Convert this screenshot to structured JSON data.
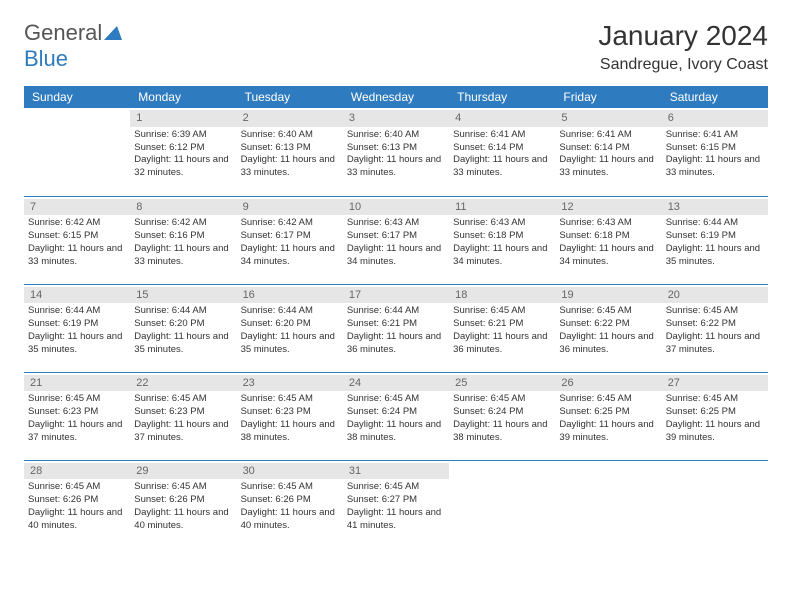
{
  "logo": {
    "general": "General",
    "blue": "Blue"
  },
  "title": "January 2024",
  "location": "Sandregue, Ivory Coast",
  "colors": {
    "header_bg": "#2f7bbf",
    "header_text": "#ffffff",
    "daynum_bg": "#e6e6e6",
    "daynum_text": "#666666",
    "border": "#2f7bbf",
    "text": "#333333",
    "background": "#ffffff"
  },
  "day_names": [
    "Sunday",
    "Monday",
    "Tuesday",
    "Wednesday",
    "Thursday",
    "Friday",
    "Saturday"
  ],
  "weeks": [
    [
      {
        "n": "",
        "lines": []
      },
      {
        "n": "1",
        "lines": [
          "Sunrise: 6:39 AM",
          "Sunset: 6:12 PM",
          "Daylight: 11 hours and 32 minutes."
        ]
      },
      {
        "n": "2",
        "lines": [
          "Sunrise: 6:40 AM",
          "Sunset: 6:13 PM",
          "Daylight: 11 hours and 33 minutes."
        ]
      },
      {
        "n": "3",
        "lines": [
          "Sunrise: 6:40 AM",
          "Sunset: 6:13 PM",
          "Daylight: 11 hours and 33 minutes."
        ]
      },
      {
        "n": "4",
        "lines": [
          "Sunrise: 6:41 AM",
          "Sunset: 6:14 PM",
          "Daylight: 11 hours and 33 minutes."
        ]
      },
      {
        "n": "5",
        "lines": [
          "Sunrise: 6:41 AM",
          "Sunset: 6:14 PM",
          "Daylight: 11 hours and 33 minutes."
        ]
      },
      {
        "n": "6",
        "lines": [
          "Sunrise: 6:41 AM",
          "Sunset: 6:15 PM",
          "Daylight: 11 hours and 33 minutes."
        ]
      }
    ],
    [
      {
        "n": "7",
        "lines": [
          "Sunrise: 6:42 AM",
          "Sunset: 6:15 PM",
          "Daylight: 11 hours and 33 minutes."
        ]
      },
      {
        "n": "8",
        "lines": [
          "Sunrise: 6:42 AM",
          "Sunset: 6:16 PM",
          "Daylight: 11 hours and 33 minutes."
        ]
      },
      {
        "n": "9",
        "lines": [
          "Sunrise: 6:42 AM",
          "Sunset: 6:17 PM",
          "Daylight: 11 hours and 34 minutes."
        ]
      },
      {
        "n": "10",
        "lines": [
          "Sunrise: 6:43 AM",
          "Sunset: 6:17 PM",
          "Daylight: 11 hours and 34 minutes."
        ]
      },
      {
        "n": "11",
        "lines": [
          "Sunrise: 6:43 AM",
          "Sunset: 6:18 PM",
          "Daylight: 11 hours and 34 minutes."
        ]
      },
      {
        "n": "12",
        "lines": [
          "Sunrise: 6:43 AM",
          "Sunset: 6:18 PM",
          "Daylight: 11 hours and 34 minutes."
        ]
      },
      {
        "n": "13",
        "lines": [
          "Sunrise: 6:44 AM",
          "Sunset: 6:19 PM",
          "Daylight: 11 hours and 35 minutes."
        ]
      }
    ],
    [
      {
        "n": "14",
        "lines": [
          "Sunrise: 6:44 AM",
          "Sunset: 6:19 PM",
          "Daylight: 11 hours and 35 minutes."
        ]
      },
      {
        "n": "15",
        "lines": [
          "Sunrise: 6:44 AM",
          "Sunset: 6:20 PM",
          "Daylight: 11 hours and 35 minutes."
        ]
      },
      {
        "n": "16",
        "lines": [
          "Sunrise: 6:44 AM",
          "Sunset: 6:20 PM",
          "Daylight: 11 hours and 35 minutes."
        ]
      },
      {
        "n": "17",
        "lines": [
          "Sunrise: 6:44 AM",
          "Sunset: 6:21 PM",
          "Daylight: 11 hours and 36 minutes."
        ]
      },
      {
        "n": "18",
        "lines": [
          "Sunrise: 6:45 AM",
          "Sunset: 6:21 PM",
          "Daylight: 11 hours and 36 minutes."
        ]
      },
      {
        "n": "19",
        "lines": [
          "Sunrise: 6:45 AM",
          "Sunset: 6:22 PM",
          "Daylight: 11 hours and 36 minutes."
        ]
      },
      {
        "n": "20",
        "lines": [
          "Sunrise: 6:45 AM",
          "Sunset: 6:22 PM",
          "Daylight: 11 hours and 37 minutes."
        ]
      }
    ],
    [
      {
        "n": "21",
        "lines": [
          "Sunrise: 6:45 AM",
          "Sunset: 6:23 PM",
          "Daylight: 11 hours and 37 minutes."
        ]
      },
      {
        "n": "22",
        "lines": [
          "Sunrise: 6:45 AM",
          "Sunset: 6:23 PM",
          "Daylight: 11 hours and 37 minutes."
        ]
      },
      {
        "n": "23",
        "lines": [
          "Sunrise: 6:45 AM",
          "Sunset: 6:23 PM",
          "Daylight: 11 hours and 38 minutes."
        ]
      },
      {
        "n": "24",
        "lines": [
          "Sunrise: 6:45 AM",
          "Sunset: 6:24 PM",
          "Daylight: 11 hours and 38 minutes."
        ]
      },
      {
        "n": "25",
        "lines": [
          "Sunrise: 6:45 AM",
          "Sunset: 6:24 PM",
          "Daylight: 11 hours and 38 minutes."
        ]
      },
      {
        "n": "26",
        "lines": [
          "Sunrise: 6:45 AM",
          "Sunset: 6:25 PM",
          "Daylight: 11 hours and 39 minutes."
        ]
      },
      {
        "n": "27",
        "lines": [
          "Sunrise: 6:45 AM",
          "Sunset: 6:25 PM",
          "Daylight: 11 hours and 39 minutes."
        ]
      }
    ],
    [
      {
        "n": "28",
        "lines": [
          "Sunrise: 6:45 AM",
          "Sunset: 6:26 PM",
          "Daylight: 11 hours and 40 minutes."
        ]
      },
      {
        "n": "29",
        "lines": [
          "Sunrise: 6:45 AM",
          "Sunset: 6:26 PM",
          "Daylight: 11 hours and 40 minutes."
        ]
      },
      {
        "n": "30",
        "lines": [
          "Sunrise: 6:45 AM",
          "Sunset: 6:26 PM",
          "Daylight: 11 hours and 40 minutes."
        ]
      },
      {
        "n": "31",
        "lines": [
          "Sunrise: 6:45 AM",
          "Sunset: 6:27 PM",
          "Daylight: 11 hours and 41 minutes."
        ]
      },
      {
        "n": "",
        "lines": []
      },
      {
        "n": "",
        "lines": []
      },
      {
        "n": "",
        "lines": []
      }
    ]
  ]
}
